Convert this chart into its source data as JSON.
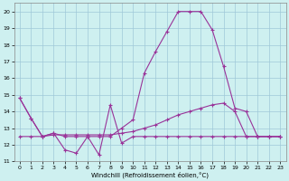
{
  "xlabel": "Windchill (Refroidissement éolien,°C)",
  "bg_color": "#cef0f0",
  "grid_color": "#a0c8d8",
  "line_color": "#993399",
  "xlim": [
    -0.5,
    23.5
  ],
  "ylim": [
    11,
    20.5
  ],
  "yticks": [
    11,
    12,
    13,
    14,
    15,
    16,
    17,
    18,
    19,
    20
  ],
  "xticks": [
    0,
    1,
    2,
    3,
    4,
    5,
    6,
    7,
    8,
    9,
    10,
    11,
    12,
    13,
    14,
    15,
    16,
    17,
    18,
    19,
    20,
    21,
    22,
    23
  ],
  "line1_x": [
    0,
    1,
    2,
    3,
    4,
    5,
    6,
    7,
    8,
    9,
    10,
    11,
    12,
    13,
    14,
    15,
    16,
    17,
    18,
    19,
    20,
    21,
    22,
    23
  ],
  "line1_y": [
    14.8,
    13.6,
    12.5,
    12.7,
    11.7,
    11.5,
    12.5,
    11.4,
    14.4,
    12.1,
    12.5,
    12.5,
    12.5,
    12.5,
    12.5,
    12.5,
    12.5,
    12.5,
    12.5,
    12.5,
    12.5,
    12.5,
    12.5,
    12.5
  ],
  "line2_x": [
    0,
    1,
    2,
    3,
    4,
    5,
    6,
    7,
    8,
    9,
    10,
    11,
    12,
    13,
    14,
    15,
    16,
    17,
    18,
    19,
    20,
    21,
    22,
    23
  ],
  "line2_y": [
    12.5,
    12.5,
    12.5,
    12.6,
    12.6,
    12.6,
    12.6,
    12.6,
    12.6,
    12.7,
    12.8,
    13.0,
    13.2,
    13.5,
    13.8,
    14.0,
    14.2,
    14.4,
    14.5,
    14.0,
    12.5,
    12.5,
    12.5,
    12.5
  ],
  "line3_x": [
    0,
    1,
    2,
    3,
    4,
    5,
    6,
    7,
    8,
    9,
    10,
    11,
    12,
    13,
    14,
    15,
    16,
    17,
    18,
    19,
    20,
    21,
    22,
    23
  ],
  "line3_y": [
    14.8,
    13.6,
    12.5,
    12.7,
    12.5,
    12.5,
    12.5,
    12.5,
    12.5,
    13.0,
    13.5,
    16.3,
    17.6,
    18.8,
    20.0,
    20.0,
    20.0,
    18.9,
    16.7,
    14.2,
    14.0,
    12.5,
    12.5,
    12.5
  ],
  "marker": "+",
  "markersize": 3,
  "linewidth": 0.8
}
